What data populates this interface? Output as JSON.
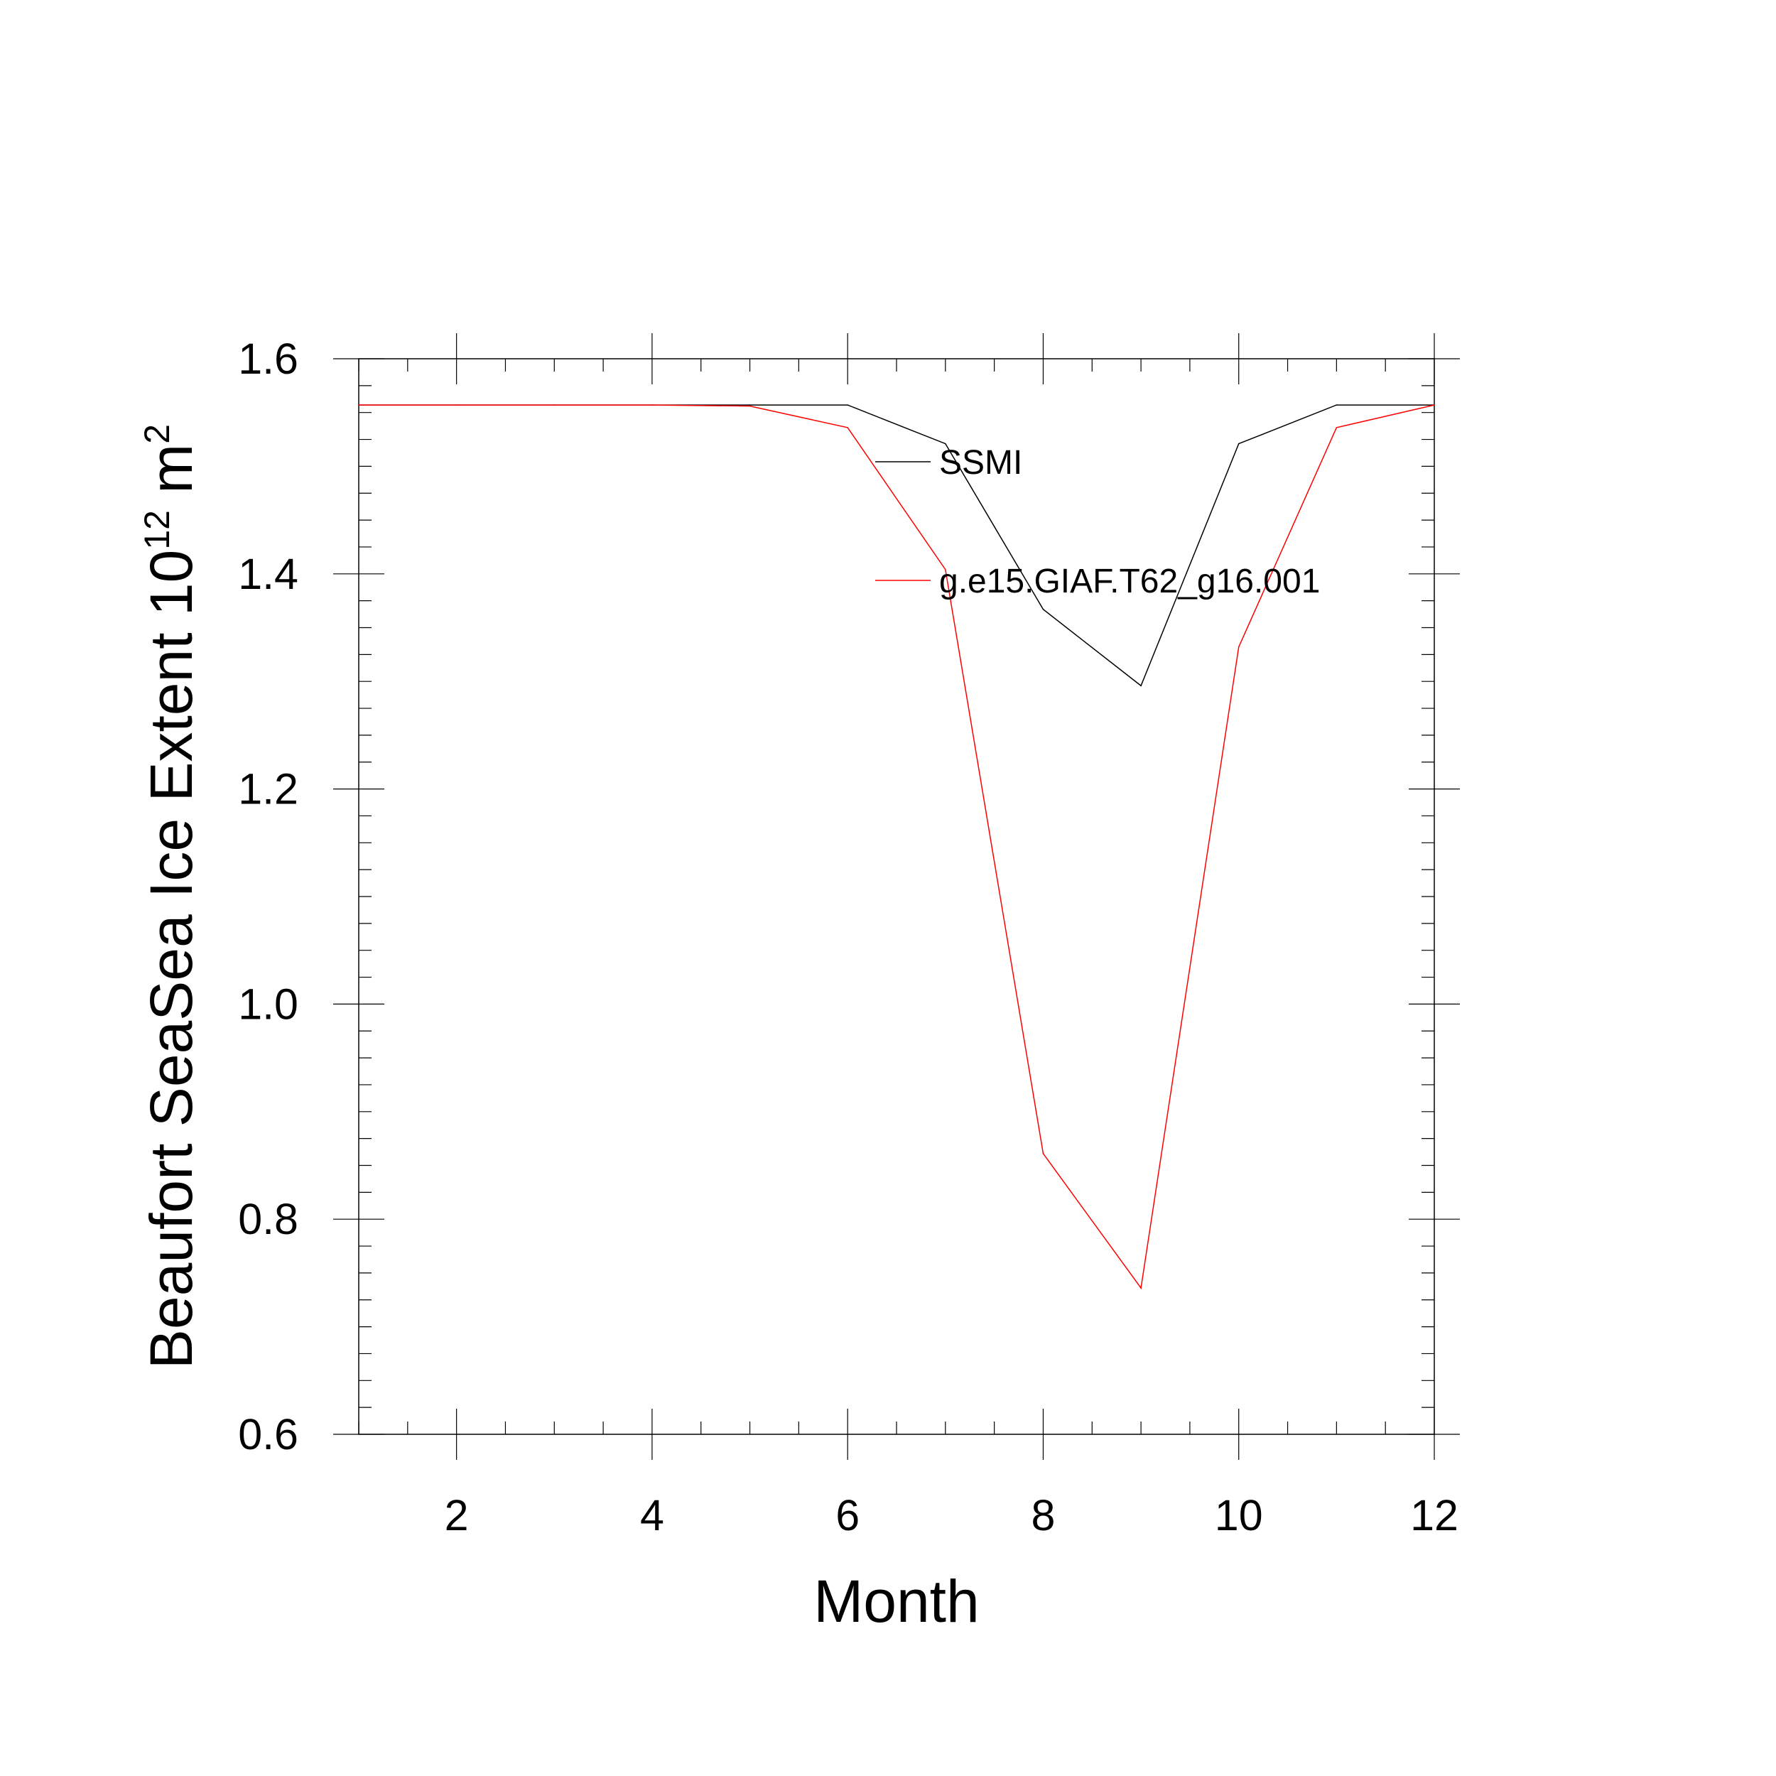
{
  "chart_data": {
    "type": "line",
    "title": "",
    "xlabel": "Month",
    "ylabel": {
      "text": "Beaufort SeaSea Ice Extent 10",
      "superscript_1": "12",
      "unit": " m",
      "superscript_2": "2"
    },
    "xlim": [
      1,
      12
    ],
    "ylim": [
      0.6,
      1.6
    ],
    "x_ticks": [
      2,
      4,
      6,
      8,
      10,
      12
    ],
    "y_ticks": [
      0.6,
      0.8,
      1.0,
      1.2,
      1.4,
      1.6
    ],
    "x_tick_labels": [
      "2",
      "4",
      "6",
      "8",
      "10",
      "12"
    ],
    "y_tick_labels": [
      "0.6",
      "0.8",
      "1.0",
      "1.2",
      "1.4",
      "1.6"
    ],
    "grid": false,
    "legend_position": "top-right inside",
    "x": [
      1,
      2,
      3,
      4,
      5,
      6,
      7,
      8,
      9,
      10,
      11,
      12
    ],
    "series": [
      {
        "name": "SSMI",
        "color": "#000000",
        "values": [
          1.557,
          1.557,
          1.557,
          1.557,
          1.557,
          1.557,
          1.521,
          1.367,
          1.296,
          1.521,
          1.557,
          1.557
        ]
      },
      {
        "name": "g.e15.GIAF.T62_g16.001",
        "color": "#ff0000",
        "values": [
          1.557,
          1.557,
          1.557,
          1.557,
          1.556,
          1.536,
          1.404,
          0.861,
          0.736,
          1.332,
          1.536,
          1.557
        ]
      }
    ]
  }
}
